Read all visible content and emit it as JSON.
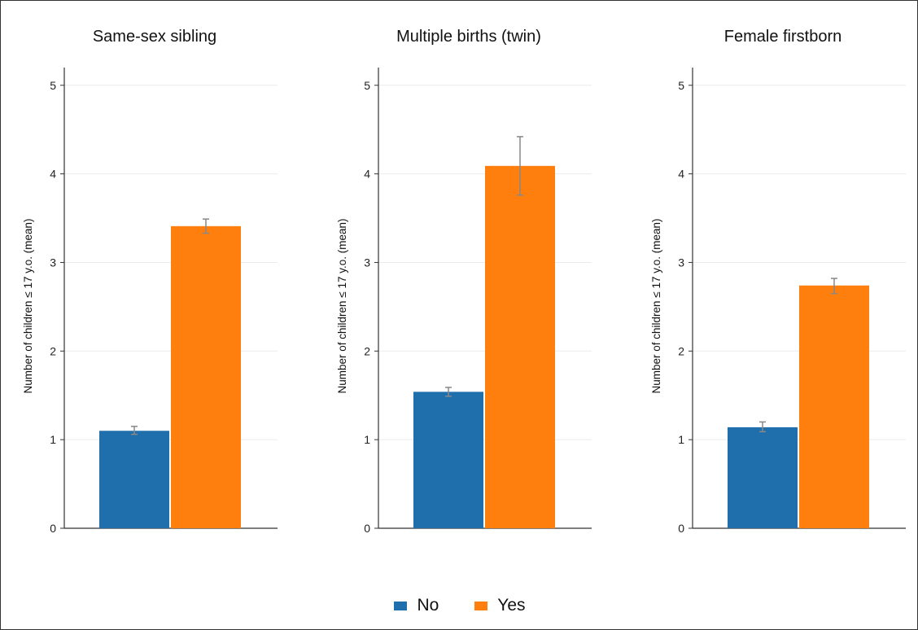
{
  "chart_data": [
    {
      "type": "bar",
      "title": "Same-sex sibling",
      "ylabel": "Number of children ≤ 17 y.o. (mean)",
      "ylim": [
        0,
        5.2
      ],
      "yticks": [
        0,
        1,
        2,
        3,
        4,
        5
      ],
      "grid": true,
      "categories": [
        "No",
        "Yes"
      ],
      "values": [
        1.1,
        3.41
      ],
      "error_low": [
        1.06,
        3.33
      ],
      "error_high": [
        1.15,
        3.49
      ]
    },
    {
      "type": "bar",
      "title": "Multiple births (twin)",
      "ylabel": "Number of children ≤ 17 y.o. (mean)",
      "ylim": [
        0,
        5.2
      ],
      "yticks": [
        0,
        1,
        2,
        3,
        4,
        5
      ],
      "grid": true,
      "categories": [
        "No",
        "Yes"
      ],
      "values": [
        1.54,
        4.09
      ],
      "error_low": [
        1.49,
        3.76
      ],
      "error_high": [
        1.59,
        4.42
      ]
    },
    {
      "type": "bar",
      "title": "Female firstborn",
      "ylabel": "Number of children ≤ 17 y.o. (mean)",
      "ylim": [
        0,
        5.2
      ],
      "yticks": [
        0,
        1,
        2,
        3,
        4,
        5
      ],
      "grid": true,
      "categories": [
        "No",
        "Yes"
      ],
      "values": [
        1.14,
        2.74
      ],
      "error_low": [
        1.09,
        2.65
      ],
      "error_high": [
        1.2,
        2.82
      ]
    }
  ],
  "legend": {
    "placement": "bottom-center",
    "items": [
      {
        "label": "No",
        "color": "#1f6fad"
      },
      {
        "label": "Yes",
        "color": "#ff7f0e"
      }
    ]
  },
  "colors": {
    "no": "#1f6fad",
    "yes": "#ff7f0e",
    "errorbar": "#888888",
    "axis": "#333333",
    "grid": "#ebebeb"
  }
}
